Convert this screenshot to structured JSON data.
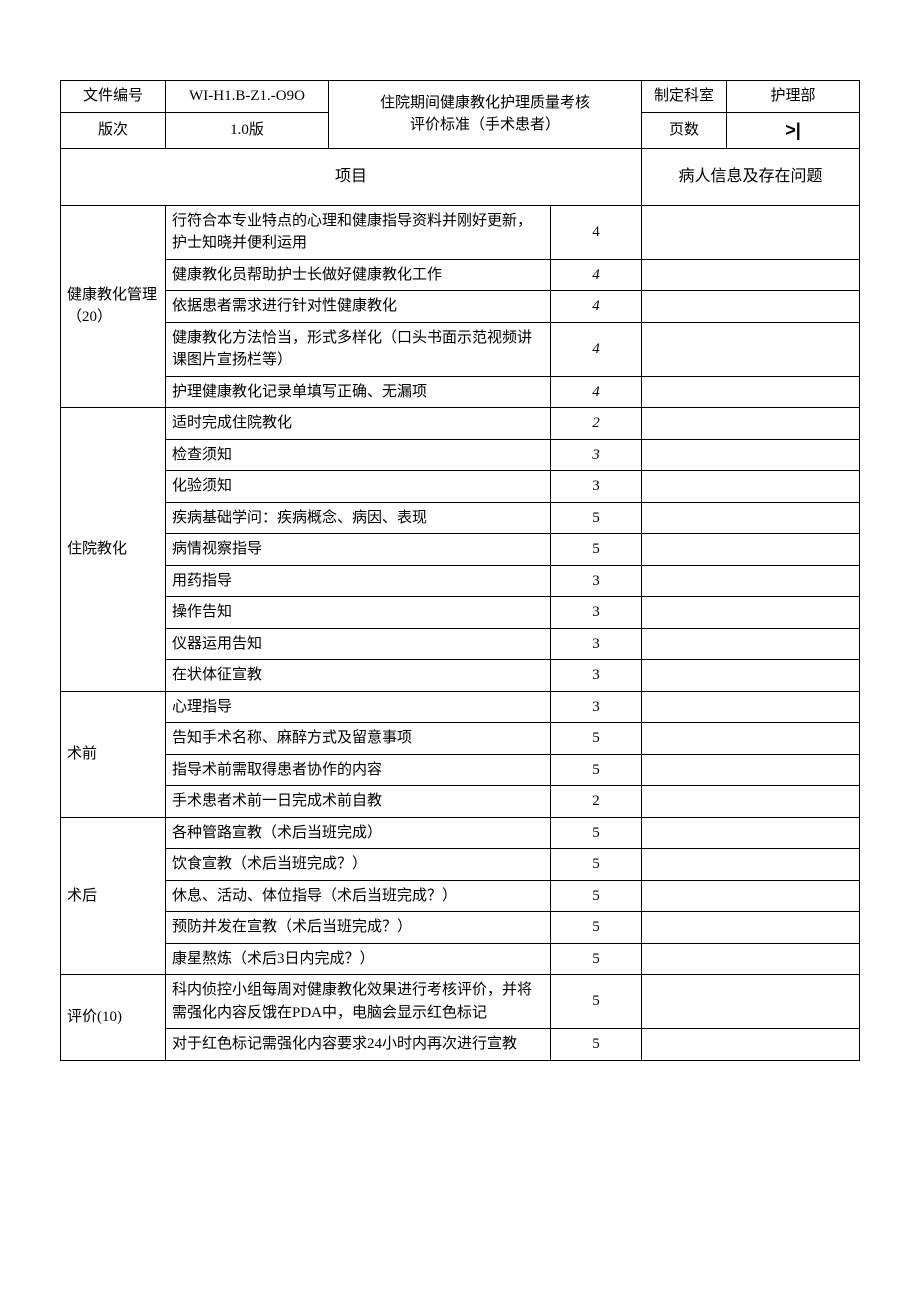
{
  "header": {
    "doc_no_label": "文件编号",
    "doc_no": "WI-H1.B-Z1.-O9O",
    "title_line1": "住院期间健康教化护理质量考核",
    "title_line2": "评价标准（手术患者）",
    "dept_label": "制定科室",
    "dept_value": "护理部",
    "version_label": "版次",
    "version_value": "1.0版",
    "page_label": "页数",
    "page_symbol": ">|"
  },
  "columns": {
    "project": "项目",
    "issues": "病人信息及存在问题"
  },
  "sections": [
    {
      "category": "健康教化管理（20）",
      "rows": [
        {
          "desc": "行符合本专业特点的心理和健康指导资料并刚好更新，护士知晓并便利运用",
          "score": "4",
          "italic": false
        },
        {
          "desc": "健康教化员帮助护士长做好健康教化工作",
          "score": "4",
          "italic": true
        },
        {
          "desc": "依据患者需求进行针对性健康教化",
          "score": "4",
          "italic": true
        },
        {
          "desc": "健康教化方法恰当，形式多样化（口头书面示范视频讲课图片宣扬栏等）",
          "score": "4",
          "italic": true
        },
        {
          "desc": "护理健康教化记录单填写正确、无漏项",
          "score": "4",
          "italic": true
        }
      ]
    },
    {
      "category": "住院教化",
      "rows": [
        {
          "desc": "适时完成住院教化",
          "score": "2",
          "italic": true
        },
        {
          "desc": "检查须知",
          "score": "3",
          "italic": true
        },
        {
          "desc": "化验须知",
          "score": "3",
          "italic": false
        },
        {
          "desc": "疾病基础学问：疾病概念、病因、表现",
          "score": "5",
          "italic": false
        },
        {
          "desc": "病情视察指导",
          "score": "5",
          "italic": false
        },
        {
          "desc": "用药指导",
          "score": "3",
          "italic": false
        },
        {
          "desc": "操作告知",
          "score": "3",
          "italic": false
        },
        {
          "desc": "仪器运用告知",
          "score": "3",
          "italic": false
        },
        {
          "desc": "在状体征宣教",
          "score": "3",
          "italic": false
        }
      ]
    },
    {
      "category": "术前",
      "rows": [
        {
          "desc": "心理指导",
          "score": "3",
          "italic": false
        },
        {
          "desc": "告知手术名称、麻醉方式及留意事项",
          "score": "5",
          "italic": false
        },
        {
          "desc": "指导术前需取得患者协作的内容",
          "score": "5",
          "italic": false
        },
        {
          "desc": "手术患者术前一日完成术前自教",
          "score": "2",
          "italic": false
        }
      ]
    },
    {
      "category": "术后",
      "rows": [
        {
          "desc": "各种管路宣教（术后当班完成）",
          "score": "5",
          "italic": false
        },
        {
          "desc": "饮食宣教（术后当班完成？）",
          "score": "5",
          "italic": false
        },
        {
          "desc": "休息、活动、体位指导（术后当班完成？）",
          "score": "5",
          "italic": false
        },
        {
          "desc": "预防并发在宣教（术后当班完成？）",
          "score": "5",
          "italic": false
        },
        {
          "desc": "康星熬炼（术后3日内完成？）",
          "score": "5",
          "italic": false
        }
      ]
    },
    {
      "category": "评价(10)",
      "rows": [
        {
          "desc": "科内侦控小组每周对健康教化效果进行考核评价，并将需强化内容反饿在PDA中，电脑会显示红色标记",
          "score": "5",
          "italic": false
        },
        {
          "desc": "对于红色标记需强化内容要求24小时内再次进行宣教",
          "score": "5",
          "italic": false
        }
      ]
    }
  ]
}
